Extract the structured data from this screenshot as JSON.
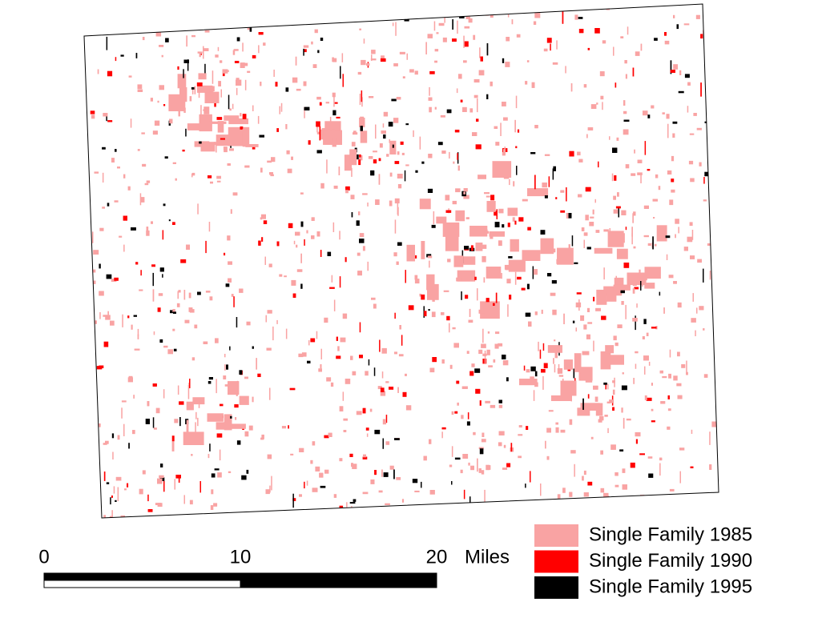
{
  "legend": [
    {
      "name": "Single Family 1985",
      "color": "#f9a3a3"
    },
    {
      "name": "Single Family 1990",
      "color": "#ff0000"
    },
    {
      "name": "Single Family 1995",
      "color": "#000000"
    }
  ],
  "scale_bar": {
    "ticks": [
      0,
      10,
      20
    ],
    "unit": "Miles"
  }
}
